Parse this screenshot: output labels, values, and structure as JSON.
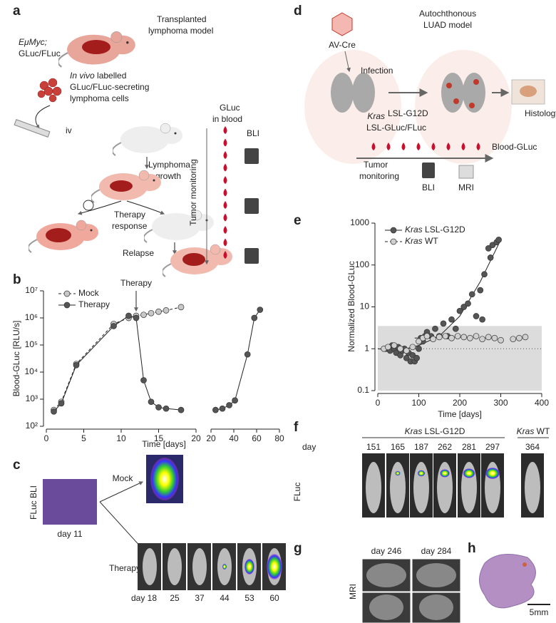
{
  "panels": {
    "a": {
      "label": "a",
      "title": [
        "Transplanted",
        "lymphoma model"
      ],
      "donor": [
        "EμMyc;",
        "GLuc/FLuc"
      ],
      "cells": [
        "In vivo labelled",
        "GLuc/FLuc-secreting",
        "lymphoma cells"
      ],
      "route": "iv",
      "growth": [
        "Lymphoma",
        "growth"
      ],
      "therapy": [
        "Therapy",
        "response"
      ],
      "relapse": "Relapse",
      "blood": [
        "GLuc",
        "in blood"
      ],
      "bli": "BLI",
      "monitoring": "Tumor monitoring"
    },
    "b": {
      "label": "b"
    },
    "c": {
      "label": "c",
      "bli": "FLuc BLI",
      "day": "day 11",
      "mock": "Mock",
      "therapy": "Therapy",
      "days": [
        "day 18",
        "25",
        "37",
        "44",
        "53",
        "60"
      ]
    },
    "d": {
      "label": "d",
      "virus": "AV-Cre",
      "title": [
        "Autochthonous",
        "LUAD model"
      ],
      "infection": "Infection",
      "histology": "Histology",
      "genotype": [
        "Kras",
        "LSL-G12D",
        "LSL-GLuc/FLuc"
      ],
      "blood": "Blood-GLuc",
      "monitoring": [
        "Tumor",
        "monitoring"
      ],
      "bli": "BLI",
      "mri": "MRI"
    },
    "e": {
      "label": "e"
    },
    "f": {
      "label": "f",
      "mutant": "Kras LSL-G12D",
      "wt": "Kras WT",
      "day": "day",
      "days": [
        "151",
        "165",
        "187",
        "262",
        "281",
        "297",
        "364"
      ],
      "fluc": "FLuc"
    },
    "g": {
      "label": "g",
      "days": [
        "day 246",
        "day 284"
      ],
      "mri": "MRI"
    },
    "h": {
      "label": "h",
      "scale": "5mm"
    }
  },
  "chart_data": [
    {
      "type": "scatter",
      "annotation": "Therapy",
      "xlabel": "Time [days]",
      "ylabel": "Blood-GLuc [RLU/s]",
      "log_y": true,
      "xlim": [
        0,
        20
      ],
      "xticks": [
        0,
        5,
        10,
        15,
        20
      ],
      "x2lim": [
        20,
        80
      ],
      "x2ticks": [
        20,
        40,
        60,
        80
      ],
      "ylim": [
        100,
        10000000
      ],
      "yticks": [
        {
          "value": 100,
          "label": "10²"
        },
        {
          "value": 1000,
          "label": "10³"
        },
        {
          "value": 10000,
          "label": "10⁴"
        },
        {
          "value": 100000,
          "label": "10⁵"
        },
        {
          "value": 1000000,
          "label": "10⁶"
        },
        {
          "value": 10000000,
          "label": "10⁷"
        }
      ],
      "series": [
        {
          "name": "Mock",
          "color": "#c8c8c8",
          "dash": true,
          "x": [
            1,
            2,
            4,
            9,
            11,
            12,
            13,
            14,
            15,
            16,
            18
          ],
          "values": [
            400,
            800,
            20000,
            600000,
            1000000,
            1200000,
            1300000,
            1500000,
            1700000,
            1900000,
            2500000
          ]
        },
        {
          "name": "Therapy",
          "color": "#555555",
          "dash": false,
          "x": [
            1,
            2,
            4,
            9,
            11,
            12,
            13,
            14,
            15,
            16,
            18,
            24,
            30,
            36,
            41,
            52,
            58,
            63
          ],
          "values": [
            350,
            700,
            18000,
            500000,
            1200000,
            1000000,
            5000,
            800,
            500,
            450,
            400,
            400,
            450,
            600,
            900,
            45000,
            1000000,
            2000000
          ]
        }
      ]
    },
    {
      "type": "scatter",
      "xlabel": "Time [days]",
      "ylabel": "Normalized Blood-GLuc",
      "log_y": true,
      "xlim": [
        0,
        400
      ],
      "xticks": [
        0,
        100,
        200,
        300,
        400
      ],
      "ylim": [
        0.1,
        1000
      ],
      "yticks": [
        0.1,
        1,
        10,
        100,
        1000
      ],
      "shaded_band": [
        0.1,
        3.5
      ],
      "reference_line": 1,
      "series": [
        {
          "name": "Kras LSL-G12D",
          "color": "#555555",
          "dash": false,
          "x": [
            20,
            30,
            35,
            40,
            45,
            50,
            55,
            60,
            65,
            70,
            75,
            80,
            85,
            90,
            95,
            100,
            105,
            110,
            115,
            120,
            130,
            140,
            150,
            160,
            170,
            180,
            190,
            200,
            210,
            220,
            230,
            240,
            250,
            255,
            260,
            270,
            275,
            280,
            290,
            295
          ],
          "values": [
            1,
            0.9,
            1.2,
            1,
            0.8,
            1.1,
            0.7,
            0.9,
            1,
            0.6,
            0.8,
            0.5,
            0.7,
            0.5,
            0.6,
            1,
            1.8,
            1.5,
            2,
            2.5,
            2,
            3,
            2,
            4,
            2,
            5,
            3,
            8,
            10,
            12,
            20,
            6,
            25,
            5,
            60,
            250,
            150,
            300,
            350,
            400
          ],
          "fit": {
            "x": [
              0,
              50,
              100,
              150,
              200,
              250,
              300
            ],
            "values": [
              1,
              0.9,
              1.2,
              2,
              6,
              40,
              400
            ]
          }
        },
        {
          "name": "Kras WT",
          "color": "#d0d0d0",
          "dash": true,
          "x": [
            15,
            25,
            40,
            55,
            70,
            85,
            100,
            110,
            120,
            135,
            150,
            165,
            180,
            195,
            210,
            225,
            240,
            255,
            270,
            285,
            300,
            330,
            345,
            360
          ],
          "values": [
            1,
            1.1,
            1.2,
            1,
            0.9,
            1.1,
            1.5,
            1.8,
            2,
            1.7,
            1.9,
            2,
            1.8,
            2,
            1.9,
            1.8,
            2,
            1.7,
            1.9,
            1.8,
            1.6,
            1.7,
            1.8,
            1.9
          ],
          "fit": {
            "x": [
              90,
              150,
              200,
              250,
              300
            ],
            "values": [
              1.8,
              1.9,
              1.9,
              1.8,
              1.8
            ]
          }
        }
      ]
    }
  ]
}
